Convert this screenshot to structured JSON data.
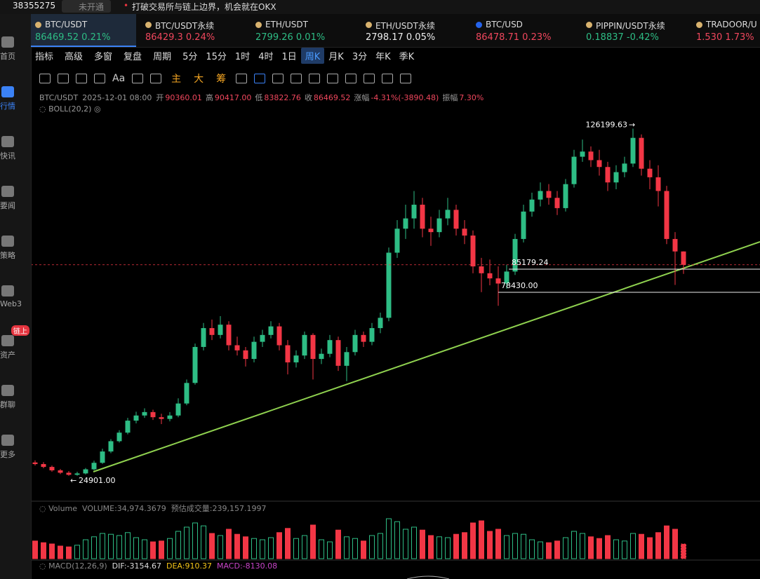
{
  "header": {
    "account": "38355275",
    "status": "未开通",
    "notice": "打破交易所与链上边界，机会就在OKX"
  },
  "tickers": [
    {
      "name": "BTC/USDT",
      "price": "86469.52",
      "change": "0.21%",
      "color": "#2ebd85",
      "active": true
    },
    {
      "name": "BTC/USDT永续",
      "price": "86429.3",
      "change": "0.24%",
      "color": "#f0475d"
    },
    {
      "name": "ETH/USDT",
      "price": "2799.26",
      "change": "0.01%",
      "color": "#2ebd85"
    },
    {
      "name": "ETH/USDT永续",
      "price": "2798.17",
      "change": "0.05%",
      "color": "#eeeeee"
    },
    {
      "name": "BTC/USD",
      "price": "86478.71",
      "change": "0.23%",
      "color": "#f0475d"
    },
    {
      "name": "PIPPIN/USDT永续",
      "price": "0.18837",
      "change": "-0.42%",
      "color": "#2ebd85"
    },
    {
      "name": "TRADOOR/U",
      "price": "1.530",
      "change": "1.73%",
      "color": "#f0475d"
    }
  ],
  "sidebar": [
    {
      "label": "首页"
    },
    {
      "label": "行情",
      "active": true
    },
    {
      "label": "快讯"
    },
    {
      "label": "要闻"
    },
    {
      "label": "策略"
    },
    {
      "label": "Web3"
    },
    {
      "label": "资产",
      "badge": "链上"
    },
    {
      "label": "群聊"
    },
    {
      "label": "更多"
    }
  ],
  "toolbar": {
    "tools": [
      "指标",
      "高级",
      "多窗",
      "复盘",
      "周期"
    ],
    "periods": [
      "5分",
      "15分",
      "1时",
      "4时",
      "1日",
      "周K",
      "月K",
      "3分",
      "年K",
      "季K"
    ],
    "active_period": 5,
    "text_tool": "Aa",
    "draw_tools": [
      "主",
      "大",
      "筹"
    ]
  },
  "info": {
    "symbol": "BTC/USDT",
    "time": "2025-12-01 08:00",
    "fields": [
      {
        "label": "开",
        "value": "90360.01"
      },
      {
        "label": "高",
        "value": "90417.00"
      },
      {
        "label": "低",
        "value": "83822.76"
      },
      {
        "label": "收",
        "value": "86469.52"
      },
      {
        "label": "涨幅",
        "value": "-4.31%(-3890.48)"
      },
      {
        "label": "振幅",
        "value": "7.30%"
      }
    ],
    "indicator": "BOLL(20,2)"
  },
  "volume_panel": {
    "title": "Volume",
    "volume": "VOLUME:34,974.3679",
    "estimate": "预估成交量:239,157.1997"
  },
  "macd_panel": {
    "title": "MACD(12,26,9)",
    "dif": "DIF:-3154.67",
    "dea": "DEA:910.37",
    "macd": "MACD:-8130.08"
  },
  "chart_data": {
    "type": "candlestick",
    "up_color": "#2ebd85",
    "down_color": "#f23645",
    "ylim": [
      17500,
      131000
    ],
    "vlim": [
      0,
      100000
    ],
    "high_label": 126199.63,
    "low_label": {
      "value": 24901,
      "label": "24901.00"
    },
    "levels": [
      85179.24,
      {
        "value": 78430,
        "label": "78430.00"
      }
    ],
    "candles": [
      [
        28800,
        29400,
        27900,
        28330
      ],
      [
        28330,
        28900,
        27100,
        27500
      ],
      [
        27500,
        27900,
        26100,
        26500
      ],
      [
        26500,
        26900,
        25400,
        25800
      ],
      [
        25800,
        26300,
        24901,
        25200
      ],
      [
        25200,
        26100,
        24950,
        25600
      ],
      [
        25600,
        27200,
        25300,
        26800
      ],
      [
        26800,
        29300,
        26500,
        28700
      ],
      [
        28700,
        32800,
        28400,
        32000
      ],
      [
        32000,
        35600,
        31500,
        35000
      ],
      [
        35000,
        38200,
        34600,
        37500
      ],
      [
        37500,
        41800,
        37000,
        41000
      ],
      [
        41000,
        43600,
        40200,
        42500
      ],
      [
        42500,
        44600,
        41800,
        43500
      ],
      [
        43500,
        44200,
        41200,
        42000
      ],
      [
        42000,
        43000,
        40000,
        41500
      ],
      [
        41500,
        43500,
        40800,
        42500
      ],
      [
        42500,
        47500,
        42000,
        46000
      ],
      [
        46000,
        53000,
        45500,
        52000
      ],
      [
        52000,
        63500,
        51500,
        62500
      ],
      [
        62500,
        69500,
        61500,
        68000
      ],
      [
        68000,
        70500,
        64500,
        66000
      ],
      [
        66000,
        71500,
        65000,
        69000
      ],
      [
        69000,
        70000,
        61500,
        63000
      ],
      [
        63000,
        65500,
        60000,
        61500
      ],
      [
        61500,
        62500,
        56800,
        59000
      ],
      [
        59000,
        65500,
        58000,
        64000
      ],
      [
        64000,
        67500,
        62500,
        66000
      ],
      [
        66000,
        70000,
        65000,
        68500
      ],
      [
        68500,
        69500,
        61500,
        63000
      ],
      [
        63000,
        64500,
        54500,
        58000
      ],
      [
        58000,
        61500,
        56500,
        60000
      ],
      [
        60000,
        67000,
        59000,
        66000
      ],
      [
        66000,
        66500,
        53000,
        59000
      ],
      [
        59000,
        62000,
        57500,
        60500
      ],
      [
        60500,
        66000,
        59500,
        64500
      ],
      [
        64500,
        65500,
        55500,
        57000
      ],
      [
        57000,
        62500,
        52500,
        61000
      ],
      [
        61000,
        67500,
        60000,
        66000
      ],
      [
        66000,
        67000,
        62500,
        64000
      ],
      [
        64000,
        69500,
        63000,
        68000
      ],
      [
        68000,
        72500,
        66500,
        71000
      ],
      [
        71000,
        91500,
        70000,
        90000
      ],
      [
        90000,
        99500,
        88500,
        97000
      ],
      [
        97000,
        104000,
        94000,
        100000
      ],
      [
        100000,
        108000,
        97000,
        104000
      ],
      [
        104000,
        106000,
        94500,
        97000
      ],
      [
        97000,
        100500,
        92000,
        96000
      ],
      [
        96000,
        102500,
        94500,
        100000
      ],
      [
        100000,
        106000,
        98000,
        102500
      ],
      [
        102500,
        104000,
        95000,
        97000
      ],
      [
        97000,
        99500,
        92500,
        95000
      ],
      [
        95000,
        96500,
        84000,
        86000
      ],
      [
        86000,
        88500,
        78500,
        84000
      ],
      [
        84000,
        88000,
        80500,
        82500
      ],
      [
        82500,
        86000,
        74500,
        81000
      ],
      [
        81000,
        86500,
        79500,
        84500
      ],
      [
        84500,
        95500,
        83500,
        94000
      ],
      [
        94000,
        104000,
        93000,
        102000
      ],
      [
        102000,
        107500,
        100500,
        105500
      ],
      [
        105500,
        110500,
        103500,
        108000
      ],
      [
        108000,
        110000,
        104000,
        106000
      ],
      [
        106000,
        108000,
        101000,
        103000
      ],
      [
        103000,
        111500,
        102000,
        110000
      ],
      [
        110000,
        120000,
        109000,
        118000
      ],
      [
        118000,
        123000,
        116500,
        119500
      ],
      [
        119500,
        121000,
        115000,
        117000
      ],
      [
        117000,
        120000,
        112500,
        115000
      ],
      [
        115000,
        116500,
        108000,
        110500
      ],
      [
        110500,
        115500,
        108500,
        113500
      ],
      [
        113500,
        118000,
        112000,
        116000
      ],
      [
        116000,
        126199.63,
        115000,
        123500
      ],
      [
        123500,
        124500,
        112500,
        114500
      ],
      [
        114500,
        117000,
        108500,
        112000
      ],
      [
        112000,
        115500,
        103500,
        108000
      ],
      [
        108000,
        109500,
        92500,
        94000
      ],
      [
        94000,
        96000,
        80600,
        90360.01
      ],
      [
        90360.01,
        90417.0,
        83822.76,
        86469.52
      ]
    ],
    "volumes": [
      42000,
      38000,
      35000,
      30000,
      28000,
      32000,
      45000,
      52000,
      60000,
      58000,
      55000,
      62000,
      50000,
      45000,
      40000,
      42000,
      48000,
      65000,
      75000,
      85000,
      78000,
      60000,
      55000,
      70000,
      58000,
      52000,
      48000,
      45000,
      50000,
      62000,
      72000,
      48000,
      55000,
      80000,
      45000,
      40000,
      68000,
      52000,
      48000,
      42000,
      55000,
      60000,
      95000,
      88000,
      70000,
      75000,
      68000,
      55000,
      52000,
      50000,
      58000,
      62000,
      85000,
      90000,
      65000,
      70000,
      55000,
      60000,
      58000,
      45000,
      40000,
      38000,
      42000,
      50000,
      65000,
      60000,
      52000,
      48000,
      55000,
      45000,
      42000,
      60000,
      58000,
      50000,
      62000,
      78000,
      70000,
      34974.3679
    ]
  }
}
